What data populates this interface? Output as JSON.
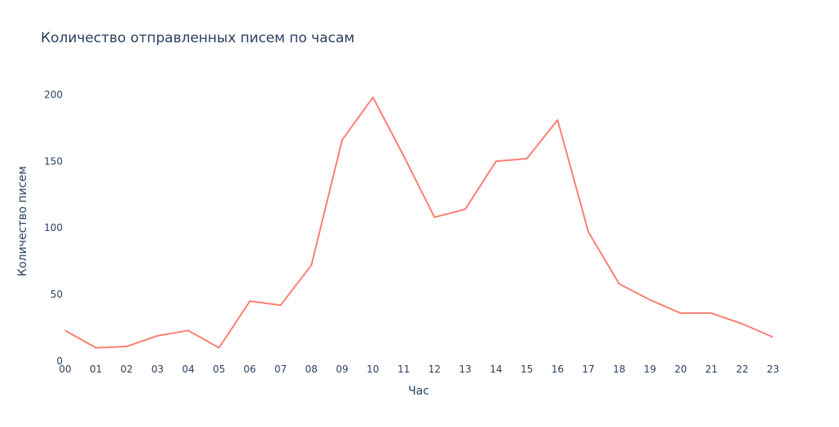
{
  "chart_data": {
    "type": "line",
    "title": "Количество отправленных писем по часам",
    "xlabel": "Час",
    "ylabel": "Количество писем",
    "categories": [
      "00",
      "01",
      "02",
      "03",
      "04",
      "05",
      "06",
      "07",
      "08",
      "09",
      "10",
      "11",
      "12",
      "13",
      "14",
      "15",
      "16",
      "17",
      "18",
      "19",
      "20",
      "21",
      "22",
      "23"
    ],
    "series": [
      {
        "values": [
          23,
          10,
          11,
          19,
          23,
          10,
          45,
          42,
          72,
          166,
          198,
          154,
          108,
          114,
          150,
          152,
          181,
          97,
          58,
          46,
          36,
          36,
          28,
          18
        ],
        "color": "#fa8072"
      }
    ],
    "ylim": [
      0,
      210
    ],
    "yticks": [
      0,
      50,
      100,
      150,
      200
    ],
    "grid": false,
    "legend": "none"
  }
}
